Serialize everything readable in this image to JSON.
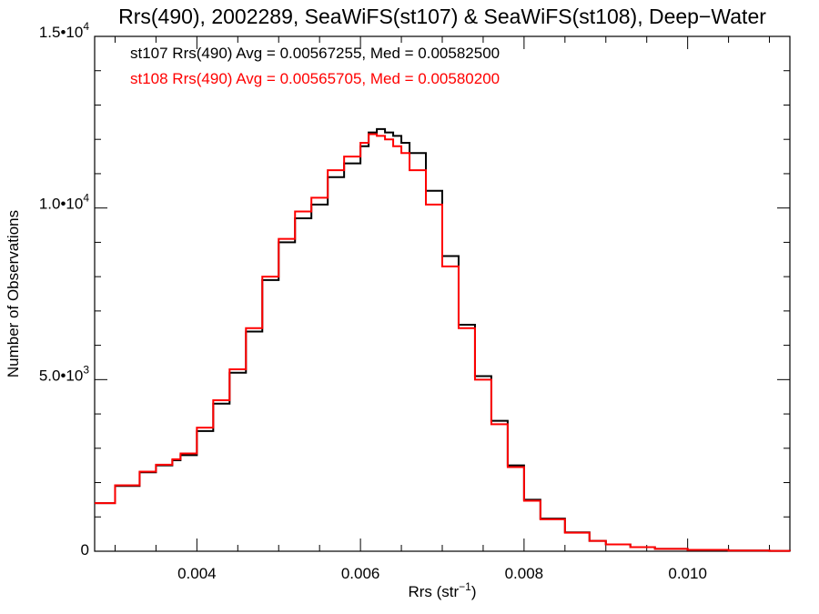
{
  "chart_data": {
    "type": "line",
    "step": true,
    "title": "Rrs(490), 2002289, SeaWiFS(st107) & SeaWiFS(st108), Deep−Water",
    "xlabel": "Rrs (str",
    "xlabel_sup": "−1",
    "xlabel_end": ")",
    "ylabel": "Number of Observations",
    "xlim": [
      0.00275,
      0.01125
    ],
    "ylim": [
      0,
      15000
    ],
    "x_ticks": [
      {
        "value": 0.004,
        "label": "0.004"
      },
      {
        "value": 0.006,
        "label": "0.006"
      },
      {
        "value": 0.008,
        "label": "0.008"
      },
      {
        "value": 0.01,
        "label": "0.010"
      }
    ],
    "y_ticks": [
      {
        "value": 0,
        "label": "0",
        "sup": ""
      },
      {
        "value": 5000,
        "label": "5.0•10",
        "sup": "3"
      },
      {
        "value": 10000,
        "label": "1.0•10",
        "sup": "4"
      },
      {
        "value": 15000,
        "label": "1.5•10",
        "sup": "4"
      }
    ],
    "legend": [
      {
        "text": "st107 Rrs(490) Avg = 0.00567255, Med = 0.00582500",
        "color": "#000000"
      },
      {
        "text": "st108 Rrs(490) Avg = 0.00565705, Med = 0.00580200",
        "color": "#ff0000"
      }
    ],
    "legend_position": "top-left",
    "series": [
      {
        "color": "#000000",
        "x": [
          0.00275,
          0.003,
          0.0033,
          0.0035,
          0.0037,
          0.0038,
          0.004,
          0.0042,
          0.0044,
          0.0046,
          0.0048,
          0.005,
          0.0052,
          0.0054,
          0.0056,
          0.0058,
          0.006,
          0.0061,
          0.0062,
          0.0063,
          0.0064,
          0.0065,
          0.0066,
          0.0068,
          0.007,
          0.0072,
          0.0074,
          0.0076,
          0.0078,
          0.008,
          0.0082,
          0.0085,
          0.0088,
          0.009,
          0.0093,
          0.0096,
          0.01,
          0.0105,
          0.011,
          0.01125
        ],
        "y": [
          1400,
          1900,
          2300,
          2500,
          2650,
          2800,
          3500,
          4300,
          5200,
          6400,
          7900,
          9000,
          9700,
          10100,
          10900,
          11300,
          11800,
          12200,
          12300,
          12200,
          12100,
          11900,
          11600,
          10500,
          8600,
          6600,
          5100,
          3800,
          2500,
          1500,
          950,
          550,
          300,
          200,
          120,
          70,
          40,
          20,
          10,
          5
        ]
      },
      {
        "color": "#ff0000",
        "x": [
          0.00275,
          0.003,
          0.0033,
          0.0035,
          0.0037,
          0.0038,
          0.004,
          0.0042,
          0.0044,
          0.0046,
          0.0048,
          0.005,
          0.0052,
          0.0054,
          0.0056,
          0.0058,
          0.006,
          0.0061,
          0.0062,
          0.0063,
          0.0064,
          0.0065,
          0.0066,
          0.0068,
          0.007,
          0.0072,
          0.0074,
          0.0076,
          0.0078,
          0.008,
          0.0082,
          0.0085,
          0.0088,
          0.009,
          0.0093,
          0.0096,
          0.01,
          0.0105,
          0.011,
          0.01125
        ],
        "y": [
          1400,
          1920,
          2320,
          2520,
          2680,
          2850,
          3600,
          4400,
          5300,
          6500,
          8000,
          9100,
          9900,
          10300,
          11100,
          11500,
          11900,
          12150,
          12100,
          12000,
          11800,
          11600,
          11100,
          10100,
          8300,
          6500,
          5000,
          3700,
          2450,
          1470,
          930,
          540,
          300,
          200,
          120,
          70,
          40,
          20,
          10,
          5
        ]
      }
    ]
  }
}
